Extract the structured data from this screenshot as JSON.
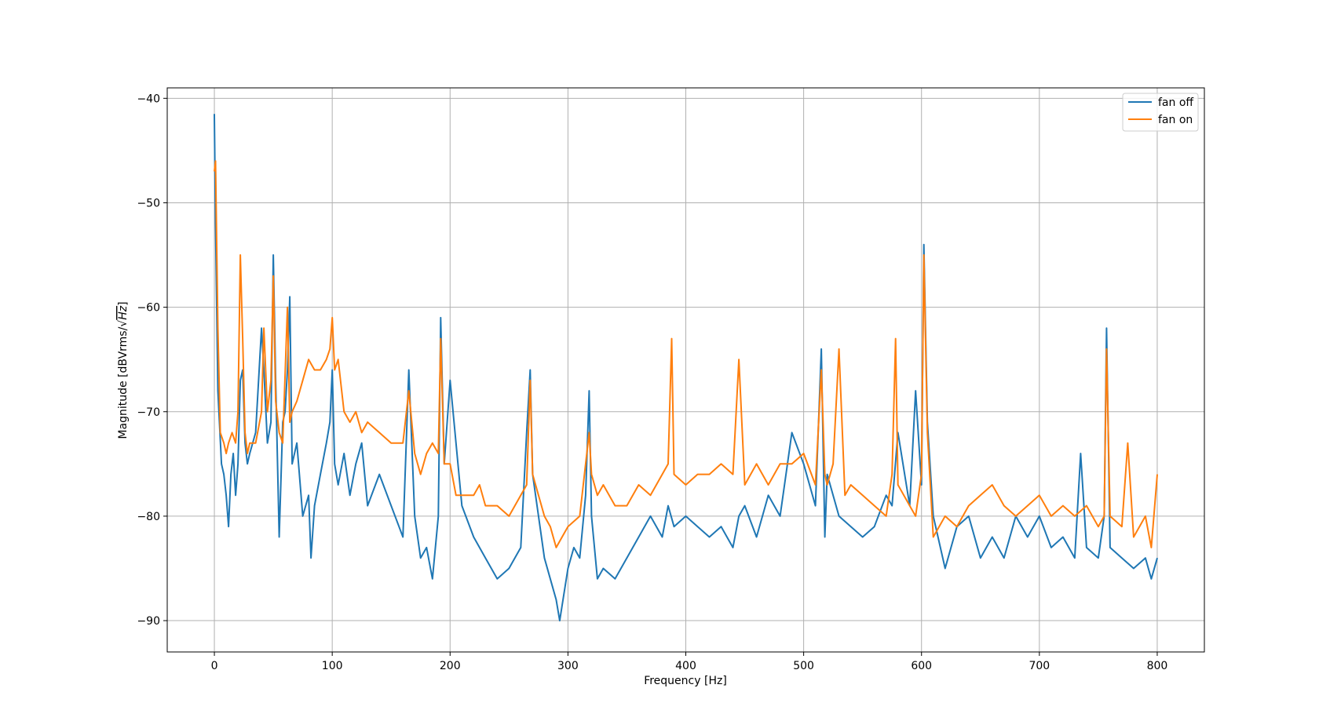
{
  "chart_data": {
    "type": "line",
    "title": "",
    "xlabel": "Frequency [Hz]",
    "ylabel_prefix": "Magnitude [dBVrms/",
    "ylabel_sqrt_arg": "Hz",
    "ylabel_suffix": "]",
    "xlim": [
      -40,
      840
    ],
    "ylim": [
      -93,
      -39
    ],
    "xticks": [
      0,
      100,
      200,
      300,
      400,
      500,
      600,
      700,
      800
    ],
    "yticks": [
      -90,
      -80,
      -70,
      -60,
      -50,
      -40
    ],
    "ytick_labels": [
      "−90",
      "−80",
      "−70",
      "−60",
      "−50",
      "−40"
    ],
    "grid": true,
    "legend_position": "top-right",
    "series": [
      {
        "name": "fan off",
        "color": "#1f77b4",
        "x": [
          0,
          1,
          3,
          6,
          8,
          10,
          12,
          14,
          16,
          18,
          20,
          22,
          24,
          26,
          28,
          30,
          35,
          40,
          42,
          45,
          48,
          50,
          52,
          55,
          58,
          60,
          62,
          64,
          66,
          70,
          75,
          80,
          82,
          85,
          90,
          95,
          98,
          100,
          102,
          105,
          110,
          115,
          120,
          125,
          130,
          140,
          150,
          160,
          165,
          170,
          175,
          180,
          185,
          190,
          192,
          195,
          200,
          210,
          220,
          230,
          240,
          250,
          260,
          265,
          268,
          270,
          275,
          280,
          285,
          290,
          293,
          300,
          305,
          310,
          315,
          318,
          320,
          325,
          330,
          340,
          350,
          360,
          370,
          380,
          385,
          390,
          400,
          410,
          420,
          430,
          440,
          445,
          450,
          460,
          470,
          480,
          490,
          500,
          510,
          515,
          518,
          520,
          530,
          540,
          550,
          560,
          570,
          575,
          580,
          590,
          595,
          600,
          602,
          605,
          610,
          620,
          630,
          640,
          650,
          660,
          670,
          680,
          690,
          700,
          710,
          720,
          730,
          735,
          740,
          750,
          755,
          757,
          760,
          770,
          780,
          790,
          795,
          800
        ],
        "y": [
          -41.5,
          -52,
          -68,
          -75,
          -76,
          -78,
          -81,
          -76,
          -74,
          -78,
          -75,
          -67,
          -66,
          -73,
          -75,
          -74,
          -72,
          -62,
          -66,
          -73,
          -71,
          -55,
          -67,
          -82,
          -71,
          -70,
          -66,
          -59,
          -75,
          -73,
          -80,
          -78,
          -84,
          -79,
          -76,
          -73,
          -71,
          -66,
          -75,
          -77,
          -74,
          -78,
          -75,
          -73,
          -79,
          -76,
          -79,
          -82,
          -66,
          -80,
          -84,
          -83,
          -86,
          -80,
          -61,
          -75,
          -67,
          -79,
          -82,
          -84,
          -86,
          -85,
          -83,
          -72,
          -66,
          -76,
          -80,
          -84,
          -86,
          -88,
          -90,
          -85,
          -83,
          -84,
          -78,
          -68,
          -80,
          -86,
          -85,
          -86,
          -84,
          -82,
          -80,
          -82,
          -79,
          -81,
          -80,
          -81,
          -82,
          -81,
          -83,
          -80,
          -79,
          -82,
          -78,
          -80,
          -72,
          -75,
          -79,
          -64,
          -82,
          -76,
          -80,
          -81,
          -82,
          -81,
          -78,
          -79,
          -72,
          -79,
          -68,
          -77,
          -54,
          -71,
          -80,
          -85,
          -81,
          -80,
          -84,
          -82,
          -84,
          -80,
          -82,
          -80,
          -83,
          -82,
          -84,
          -74,
          -83,
          -84,
          -80,
          -62,
          -83,
          -84,
          -85,
          -84,
          -86,
          -84
        ]
      },
      {
        "name": "fan on",
        "color": "#ff7f0e",
        "x": [
          0,
          1,
          3,
          5,
          8,
          10,
          12,
          15,
          18,
          20,
          22,
          24,
          26,
          28,
          30,
          35,
          40,
          42,
          45,
          48,
          50,
          52,
          55,
          58,
          62,
          64,
          66,
          70,
          75,
          80,
          85,
          90,
          95,
          98,
          100,
          102,
          105,
          110,
          115,
          120,
          125,
          130,
          140,
          150,
          160,
          165,
          170,
          175,
          180,
          185,
          190,
          192,
          195,
          200,
          205,
          210,
          220,
          225,
          230,
          240,
          250,
          260,
          265,
          268,
          270,
          275,
          280,
          285,
          290,
          295,
          300,
          310,
          318,
          320,
          325,
          330,
          340,
          350,
          360,
          370,
          380,
          385,
          388,
          390,
          400,
          410,
          420,
          430,
          440,
          445,
          450,
          460,
          470,
          480,
          490,
          500,
          510,
          515,
          518,
          520,
          525,
          530,
          535,
          540,
          550,
          560,
          570,
          575,
          578,
          580,
          590,
          595,
          600,
          602,
          605,
          610,
          620,
          630,
          640,
          650,
          660,
          670,
          680,
          690,
          700,
          710,
          720,
          730,
          740,
          750,
          755,
          757,
          760,
          770,
          775,
          780,
          790,
          795,
          800
        ],
        "y": [
          -47,
          -46,
          -62,
          -72,
          -73,
          -74,
          -73,
          -72,
          -73,
          -70,
          -55,
          -63,
          -72,
          -74,
          -73,
          -73,
          -70,
          -62,
          -70,
          -67,
          -57,
          -69,
          -72,
          -73,
          -60,
          -71,
          -70,
          -69,
          -67,
          -65,
          -66,
          -66,
          -65,
          -64,
          -61,
          -66,
          -65,
          -70,
          -71,
          -70,
          -72,
          -71,
          -72,
          -73,
          -73,
          -68,
          -74,
          -76,
          -74,
          -73,
          -74,
          -63,
          -75,
          -75,
          -78,
          -78,
          -78,
          -77,
          -79,
          -79,
          -80,
          -78,
          -77,
          -67,
          -76,
          -78,
          -80,
          -81,
          -83,
          -82,
          -81,
          -80,
          -72,
          -76,
          -78,
          -77,
          -79,
          -79,
          -77,
          -78,
          -76,
          -75,
          -63,
          -76,
          -77,
          -76,
          -76,
          -75,
          -76,
          -65,
          -77,
          -75,
          -77,
          -75,
          -75,
          -74,
          -77,
          -66,
          -76,
          -77,
          -75,
          -64,
          -78,
          -77,
          -78,
          -79,
          -80,
          -76,
          -63,
          -77,
          -79,
          -80,
          -76,
          -55,
          -72,
          -82,
          -80,
          -81,
          -79,
          -78,
          -77,
          -79,
          -80,
          -79,
          -78,
          -80,
          -79,
          -80,
          -79,
          -81,
          -80,
          -64,
          -80,
          -81,
          -73,
          -82,
          -80,
          -83,
          -76
        ]
      }
    ]
  }
}
